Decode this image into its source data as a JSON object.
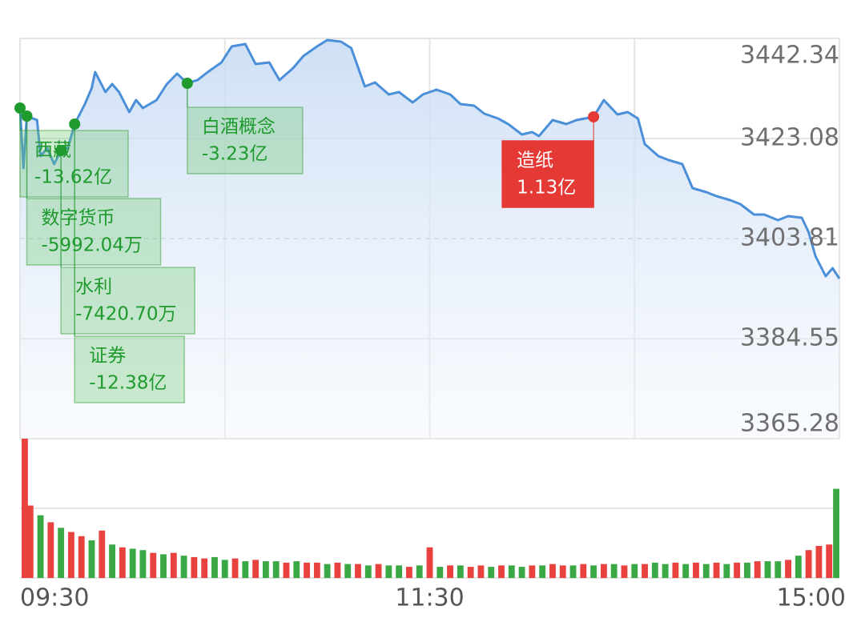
{
  "chart_data": {
    "type": "line",
    "series": [
      {
        "color": "#4a8fd8",
        "x": [
          0,
          1,
          2,
          5,
          6,
          8,
          10,
          12,
          14,
          16,
          19,
          21,
          22,
          25,
          27,
          29,
          32,
          34,
          36,
          40,
          43,
          46,
          49,
          52,
          55,
          59,
          62,
          66,
          69,
          73,
          76,
          80,
          83,
          87,
          90,
          94,
          97,
          101,
          104,
          108,
          111,
          115,
          118,
          122,
          126,
          129,
          133,
          136,
          140,
          143,
          147,
          150,
          152,
          156,
          160,
          163,
          168,
          171,
          175,
          178,
          181,
          183,
          187,
          190,
          194,
          197,
          201,
          204,
          208,
          211,
          215,
          218,
          222,
          225,
          229,
          231,
          233,
          236,
          238,
          240
        ],
        "values": [
          3428.93,
          3417.37,
          3427.39,
          3426.62,
          3419.68,
          3421.23,
          3418.14,
          3420.76,
          3421.23,
          3425.85,
          3429.7,
          3432.78,
          3435.87,
          3432.01,
          3433.56,
          3432.01,
          3428.16,
          3430.47,
          3428.93,
          3430.47,
          3433.56,
          3435.56,
          3433.71,
          3434.33,
          3435.87,
          3437.72,
          3440.8,
          3441.26,
          3437.41,
          3437.72,
          3434.33,
          3436.64,
          3438.95,
          3440.8,
          3442.03,
          3441.72,
          3440.49,
          3433.09,
          3433.86,
          3431.55,
          3432.01,
          3430.01,
          3431.55,
          3432.48,
          3431.55,
          3429.7,
          3429.39,
          3427.85,
          3426.93,
          3425.85,
          3423.85,
          3424.31,
          3423.54,
          3426.62,
          3425.85,
          3426.62,
          3427.24,
          3430.47,
          3427.7,
          3428.16,
          3426.93,
          3422.0,
          3419.68,
          3418.91,
          3418.14,
          3413.52,
          3412.75,
          3411.98,
          3411.21,
          3410.44,
          3408.43,
          3408.43,
          3407.35,
          3408.13,
          3407.82,
          3405.04,
          3400.42,
          3396.57,
          3398.11,
          3396.1
        ]
      }
    ],
    "xlim": [
      0,
      240
    ],
    "xticks": [
      {
        "value": 0,
        "label": "09:30"
      },
      {
        "value": 120,
        "label": "11:30"
      },
      {
        "value": 240,
        "label": "15:00"
      }
    ],
    "xgrid": [
      0,
      60,
      120,
      180,
      240
    ],
    "ylim": [
      3365.28,
      3442.34
    ],
    "yticks": [
      3365.28,
      3384.55,
      3403.81,
      3423.08,
      3442.34
    ],
    "baseline": 3403.81,
    "annotations": [
      {
        "x": 0,
        "label": "西藏",
        "amount": "-13.62亿",
        "color": "#1f9a2e"
      },
      {
        "x": 2,
        "label": "数字货币",
        "amount": "-5992.04万",
        "color": "#1f9a2e"
      },
      {
        "x": 12,
        "label": "水利",
        "amount": "-7420.70万",
        "color": "#1f9a2e"
      },
      {
        "x": 16,
        "label": "证券",
        "amount": "-12.38亿",
        "color": "#1f9a2e"
      },
      {
        "x": 49,
        "label": "白酒概念",
        "amount": "-3.23亿",
        "color": "#1f9a2e"
      },
      {
        "x": 168,
        "label": "造纸",
        "amount": "1.13亿",
        "color": "#e53935"
      }
    ],
    "volume": {
      "type": "bar",
      "ylim": [
        0,
        100
      ],
      "up_color": "#e8413e",
      "down_color": "#39a845",
      "x": [
        0,
        3,
        6,
        9,
        12,
        15,
        18,
        21,
        24,
        27,
        30,
        33,
        36,
        39,
        42,
        45,
        48,
        51,
        54,
        57,
        60,
        63,
        66,
        69,
        72,
        75,
        78,
        81,
        84,
        87,
        90,
        93,
        96,
        99,
        102,
        105,
        108,
        111,
        114,
        117,
        120,
        123,
        126,
        129,
        132,
        135,
        138,
        141,
        144,
        147,
        150,
        153,
        156,
        159,
        162,
        165,
        168,
        171,
        174,
        177,
        180,
        183,
        186,
        189,
        192,
        195,
        198,
        201,
        204,
        207,
        210,
        213,
        216,
        219,
        222,
        225,
        228,
        231,
        234,
        237,
        240
      ],
      "values": [
        100,
        52,
        45,
        40,
        36,
        33,
        30,
        27,
        34,
        24,
        22,
        21,
        20,
        18,
        17,
        18,
        16,
        15,
        14,
        15,
        13,
        14,
        12,
        13,
        12,
        12,
        11,
        12,
        11,
        11,
        10,
        11,
        10,
        10,
        9,
        10,
        9,
        9,
        8,
        9,
        22,
        8,
        9,
        9,
        8,
        9,
        8,
        9,
        9,
        8,
        9,
        9,
        10,
        9,
        9,
        10,
        9,
        10,
        10,
        9,
        10,
        10,
        11,
        10,
        11,
        10,
        11,
        10,
        11,
        10,
        11,
        11,
        12,
        12,
        12,
        13,
        16,
        20,
        23,
        24,
        64
      ],
      "up": [
        true,
        true,
        false,
        true,
        false,
        true,
        true,
        false,
        true,
        false,
        true,
        false,
        false,
        true,
        false,
        true,
        false,
        true,
        true,
        false,
        false,
        true,
        false,
        true,
        false,
        false,
        true,
        false,
        true,
        true,
        false,
        true,
        false,
        true,
        false,
        true,
        false,
        false,
        true,
        false,
        true,
        false,
        true,
        false,
        true,
        true,
        false,
        true,
        false,
        false,
        true,
        false,
        true,
        true,
        false,
        true,
        false,
        true,
        false,
        true,
        false,
        true,
        false,
        false,
        true,
        false,
        true,
        false,
        true,
        false,
        true,
        false,
        true,
        false,
        false,
        true,
        false,
        true,
        true,
        true,
        false
      ]
    }
  }
}
